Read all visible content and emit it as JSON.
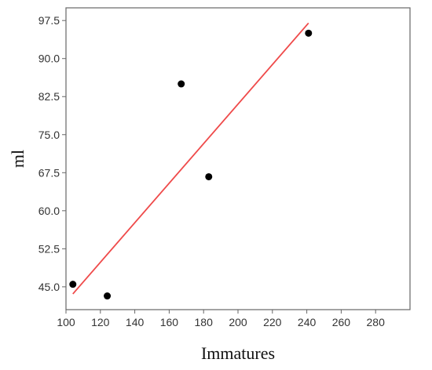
{
  "chart_data": {
    "type": "scatter",
    "title": "",
    "xlabel": "Immatures",
    "ylabel": "ml",
    "xlim": [
      100,
      300
    ],
    "ylim": [
      40.5,
      100
    ],
    "x_ticks": [
      100,
      120,
      140,
      160,
      180,
      200,
      220,
      240,
      260,
      280
    ],
    "y_ticks": [
      45.0,
      52.5,
      60.0,
      67.5,
      75.0,
      82.5,
      90.0,
      97.5
    ],
    "x_tick_labels": [
      "100",
      "120",
      "140",
      "160",
      "180",
      "200",
      "220",
      "240",
      "260",
      "280"
    ],
    "y_tick_labels": [
      "45.0",
      "52.5",
      "60.0",
      "67.5",
      "75.0",
      "82.5",
      "90.0",
      "97.5"
    ],
    "grid": false,
    "legend": "none",
    "points": [
      {
        "x": 104,
        "y": 45.5
      },
      {
        "x": 124,
        "y": 43.2
      },
      {
        "x": 167,
        "y": 85.0
      },
      {
        "x": 183,
        "y": 66.7
      },
      {
        "x": 241,
        "y": 95.0
      }
    ],
    "fit_line": {
      "x": [
        104,
        241
      ],
      "y": [
        43.6,
        97.0
      ]
    },
    "colors": {
      "points": "#000000",
      "fit_line": "#ef4a4a",
      "axes": "#666666"
    }
  }
}
